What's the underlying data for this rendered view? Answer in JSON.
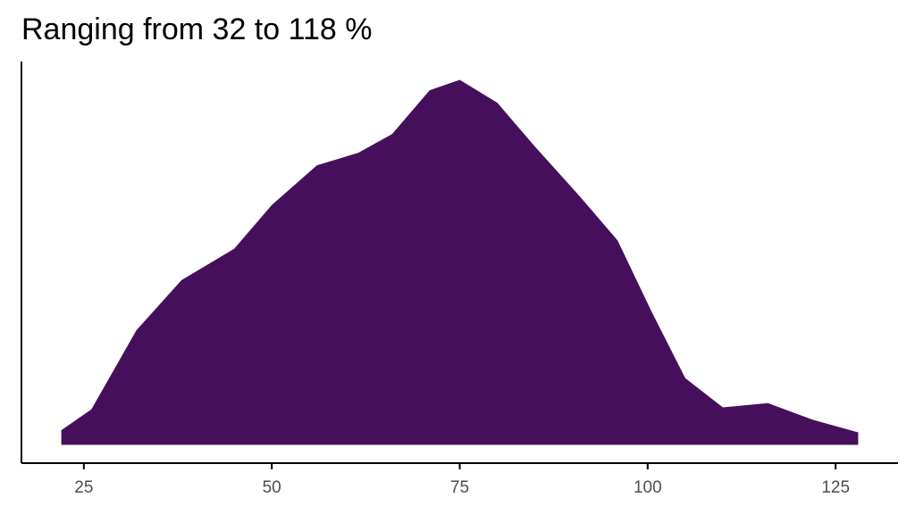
{
  "chart_data": {
    "type": "density",
    "title": "Ranging from 32 to 118 %",
    "color": "#460f5b",
    "x": [
      22,
      26,
      32,
      38,
      45,
      50,
      56,
      61.5,
      66,
      71,
      75,
      80,
      85,
      91,
      96,
      100.5,
      105,
      110,
      116,
      122,
      128
    ],
    "values": [
      0.0007,
      0.0017,
      0.0055,
      0.0079,
      0.0094,
      0.0115,
      0.0134,
      0.014,
      0.0149,
      0.017,
      0.0175,
      0.0164,
      0.0143,
      0.0119,
      0.0098,
      0.0064,
      0.0032,
      0.0018,
      0.002,
      0.0012,
      0.0006
    ],
    "xlim": [
      16.7,
      133.3
    ],
    "ylim": [
      -0.000875,
      0.018375
    ],
    "xticks": [
      25,
      50,
      75,
      100,
      125
    ]
  }
}
